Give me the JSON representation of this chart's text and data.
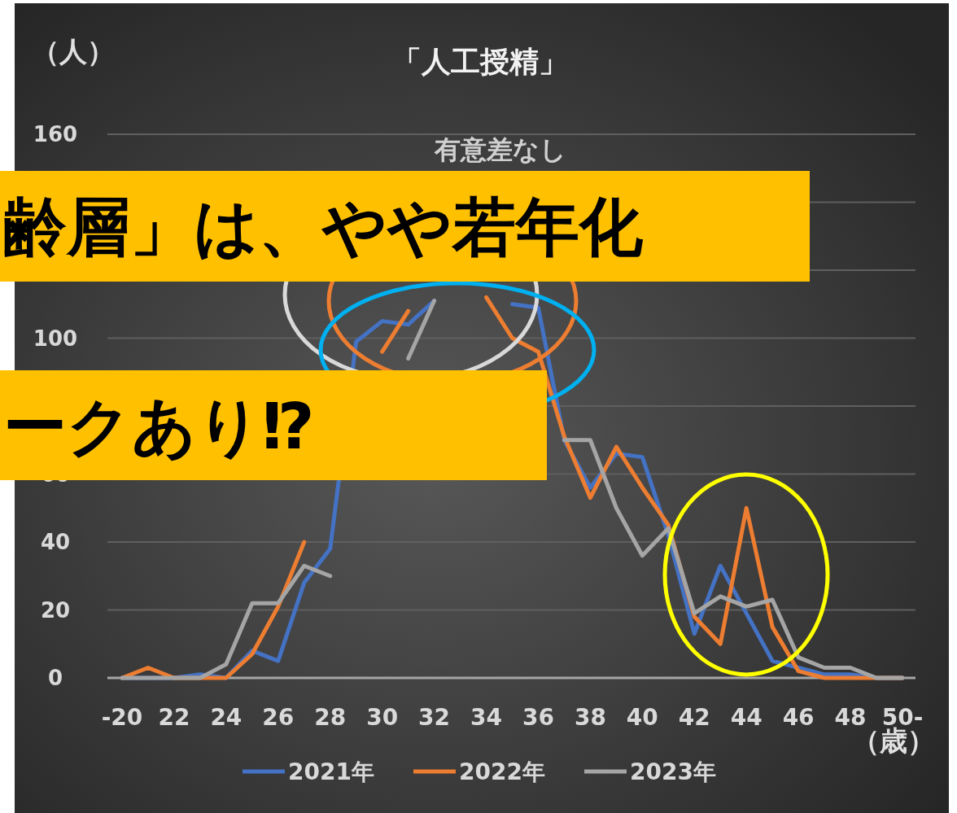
{
  "chart_data": {
    "type": "line",
    "title": "「人工授精」",
    "subtitle": "有意差なし",
    "ylabel": "（人）",
    "xlabel": "（歳）",
    "categories": [
      "-20",
      null,
      "22",
      null,
      "24",
      null,
      "26",
      null,
      "28",
      null,
      "30",
      null,
      "32",
      null,
      "34",
      null,
      "36",
      null,
      "38",
      null,
      "40",
      null,
      "42",
      null,
      "44",
      null,
      "46",
      null,
      "48",
      null,
      "50-"
    ],
    "series": [
      {
        "name": "2021年",
        "color": "#4472c4",
        "values": [
          0,
          0,
          0,
          1,
          0,
          8,
          5,
          28,
          38,
          99,
          105,
          104,
          111,
          null,
          null,
          110,
          109,
          70,
          56,
          66,
          65,
          42,
          13,
          33,
          19,
          5,
          3,
          1,
          1,
          0,
          0
        ]
      },
      {
        "name": "2022年",
        "color": "#ed7d31",
        "values": [
          0,
          3,
          0,
          0,
          0,
          7,
          21,
          40,
          null,
          null,
          96,
          108,
          null,
          null,
          112,
          100,
          96,
          71,
          53,
          68,
          56,
          45,
          18,
          10,
          50,
          15,
          2,
          0,
          0,
          0,
          0
        ]
      },
      {
        "name": "2023年",
        "color": "#a5a5a5",
        "values": [
          0,
          0,
          0,
          0,
          4,
          22,
          22,
          33,
          30,
          null,
          null,
          94,
          111,
          null,
          null,
          null,
          null,
          70,
          70,
          50,
          36,
          44,
          19,
          24,
          21,
          23,
          6,
          3,
          3,
          0,
          0
        ]
      }
    ],
    "ylim": [
      0,
      160
    ],
    "yticks": [
      0,
      20,
      40,
      60,
      {
        "value": 80,
        "label": null
      },
      100,
      {
        "value": 120,
        "label": null
      },
      {
        "value": 140,
        "label": null
      },
      160
    ],
    "grid": "y",
    "legend": "bottom",
    "marker": "none",
    "line_style": "solid",
    "annotations": [
      "齢層」は、やや若年化",
      "ークあり⁉"
    ]
  }
}
